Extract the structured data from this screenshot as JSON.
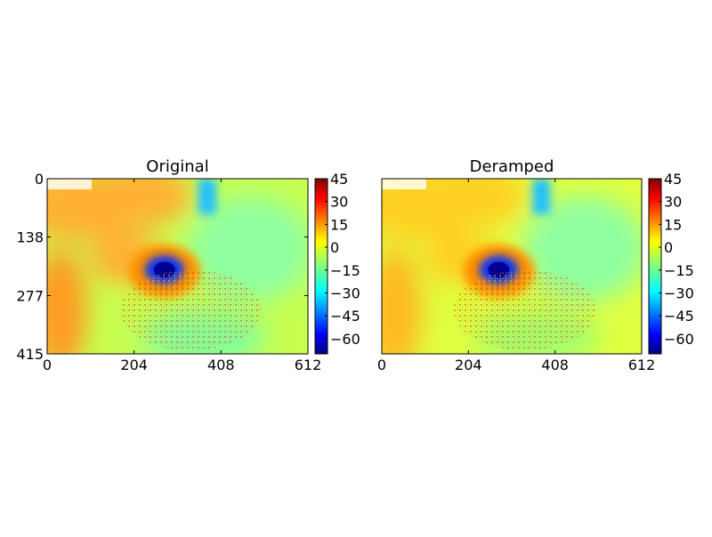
{
  "chart_data": [
    {
      "type": "image",
      "title": "Original",
      "colormap": "jet",
      "xlim": [
        0,
        612
      ],
      "xticks": [
        0,
        204,
        408,
        612
      ],
      "ylim": [
        415,
        0
      ],
      "yticks": [
        0,
        138,
        277,
        415
      ],
      "clim": [
        -70,
        45
      ],
      "cticks": [
        45,
        30,
        15,
        0,
        {
          "value": -15,
          "label": "−15"
        },
        {
          "value": -30,
          "label": "−30"
        },
        {
          "value": -45,
          "label": "−45"
        },
        {
          "value": -60,
          "label": "−60"
        }
      ]
    },
    {
      "type": "image",
      "title": "Deramped",
      "colormap": "jet",
      "xlim": [
        0,
        612
      ],
      "xticks": [
        0,
        204,
        408,
        612
      ],
      "ylim": [
        415,
        0
      ],
      "yticks": [],
      "clim": [
        -70,
        45
      ],
      "cticks": [
        45,
        30,
        15,
        0,
        {
          "value": -15,
          "label": "−15"
        },
        {
          "value": -30,
          "label": "−30"
        },
        {
          "value": -45,
          "label": "−45"
        },
        {
          "value": -60,
          "label": "−60"
        }
      ]
    }
  ]
}
